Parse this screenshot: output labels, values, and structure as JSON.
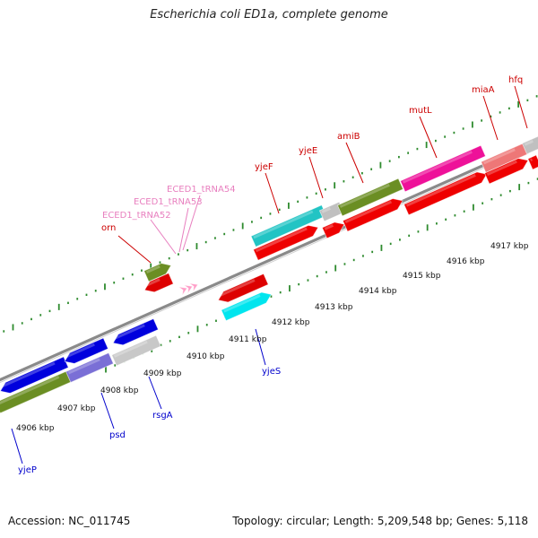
{
  "title": "Escherichia coli ED1a, complete genome",
  "footer": {
    "accession": "Accession: NC_011745",
    "topology": "Topology: circular; Length: 5,209,548 bp; Genes: 5,118"
  },
  "colors": {
    "backbone": "#999999",
    "tick": "#2e8b2e",
    "label_red": "#cc0000",
    "label_blue": "#0000cc",
    "label_pink": "#e87fbf",
    "tick_label": "#111111"
  },
  "kbp_labels": [
    {
      "text": "4906 kbp"
    },
    {
      "text": "4907 kbp"
    },
    {
      "text": "4908 kbp"
    },
    {
      "text": "4909 kbp"
    },
    {
      "text": "4910 kbp"
    },
    {
      "text": "4911 kbp"
    },
    {
      "text": "4912 kbp"
    },
    {
      "text": "4913 kbp"
    },
    {
      "text": "4914 kbp"
    },
    {
      "text": "4915 kbp"
    },
    {
      "text": "4916 kbp"
    },
    {
      "text": "4917 kbp"
    }
  ],
  "gene_labels": [
    {
      "text": "orn",
      "color": "#cc0000"
    },
    {
      "text": "ECED1_tRNA52",
      "color": "#e87fbf"
    },
    {
      "text": "ECED1_tRNA53",
      "color": "#e87fbf"
    },
    {
      "text": "ECED1_tRNA54",
      "color": "#e87fbf"
    },
    {
      "text": "yjeF",
      "color": "#cc0000"
    },
    {
      "text": "yjeE",
      "color": "#cc0000"
    },
    {
      "text": "amiB",
      "color": "#cc0000"
    },
    {
      "text": "mutL",
      "color": "#cc0000"
    },
    {
      "text": "miaA",
      "color": "#cc0000"
    },
    {
      "text": "hfq",
      "color": "#cc0000"
    },
    {
      "text": "yjeP",
      "color": "#0000cc"
    },
    {
      "text": "psd",
      "color": "#0000cc"
    },
    {
      "text": "rsgA",
      "color": "#0000cc"
    },
    {
      "text": "yjeS",
      "color": "#0000cc"
    }
  ],
  "features": [
    {
      "color": "#6b8e23"
    },
    {
      "color": "#0000dd"
    },
    {
      "color": "#7a6fd6"
    },
    {
      "color": "#c8c8c8"
    },
    {
      "color": "#0000dd"
    },
    {
      "color": "#0000dd"
    },
    {
      "color": "#00e5ee"
    },
    {
      "color": "#dd0000"
    },
    {
      "color": "#dd0000"
    },
    {
      "color": "#ff9ec8"
    },
    {
      "color": "#ff9ec8"
    },
    {
      "color": "#ff9ec8"
    },
    {
      "color": "#22c4c4"
    },
    {
      "color": "#c0c0c0"
    },
    {
      "color": "#6b8e23"
    },
    {
      "color": "#ee1199"
    },
    {
      "color": "#ee7777"
    },
    {
      "color": "#c0c0c0"
    },
    {
      "color": "#ee0000"
    },
    {
      "color": "#ee0000"
    },
    {
      "color": "#ee0000"
    },
    {
      "color": "#ee0000"
    },
    {
      "color": "#ee0000"
    },
    {
      "color": "#ee0000"
    }
  ]
}
